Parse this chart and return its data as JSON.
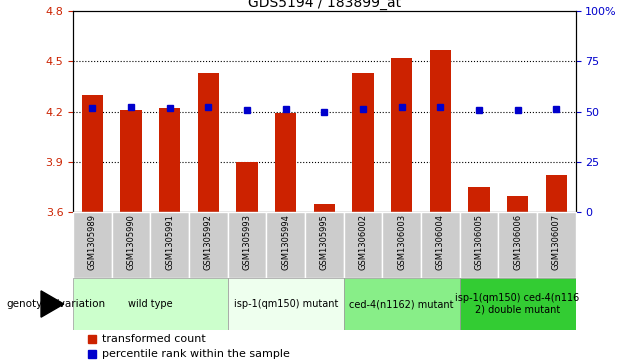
{
  "title": "GDS5194 / 183899_at",
  "samples": [
    "GSM1305989",
    "GSM1305990",
    "GSM1305991",
    "GSM1305992",
    "GSM1305993",
    "GSM1305994",
    "GSM1305995",
    "GSM1306002",
    "GSM1306003",
    "GSM1306004",
    "GSM1306005",
    "GSM1306006",
    "GSM1306007"
  ],
  "bar_values": [
    4.3,
    4.21,
    4.22,
    4.43,
    3.9,
    4.19,
    3.65,
    4.43,
    4.52,
    4.57,
    3.75,
    3.7,
    3.82
  ],
  "percentile_values": [
    4.22,
    4.23,
    4.22,
    4.23,
    4.21,
    4.215,
    4.2,
    4.215,
    4.225,
    4.225,
    4.21,
    4.21,
    4.215
  ],
  "bar_color": "#cc2200",
  "percentile_color": "#0000cc",
  "ymin": 3.6,
  "ymax": 4.8,
  "y_ticks_left": [
    3.6,
    3.9,
    4.2,
    4.5,
    4.8
  ],
  "y_ticks_right": [
    0,
    25,
    50,
    75,
    100
  ],
  "y_right_labels": [
    "0",
    "25",
    "50",
    "75",
    "100%"
  ],
  "groups": [
    {
      "label": "wild type",
      "start": 0,
      "end": 3,
      "color": "#ccffcc"
    },
    {
      "label": "isp-1(qm150) mutant",
      "start": 4,
      "end": 6,
      "color": "#eeffee"
    },
    {
      "label": "ced-4(n1162) mutant",
      "start": 7,
      "end": 9,
      "color": "#88ee88"
    },
    {
      "label": "isp-1(qm150) ced-4(n116\n2) double mutant",
      "start": 10,
      "end": 12,
      "color": "#33cc33"
    }
  ],
  "genotype_label": "genotype/variation",
  "legend_bar": "transformed count",
  "legend_pct": "percentile rank within the sample",
  "fig_bg": "#ffffff",
  "plot_bg": "#ffffff",
  "sample_box_color": "#cccccc"
}
